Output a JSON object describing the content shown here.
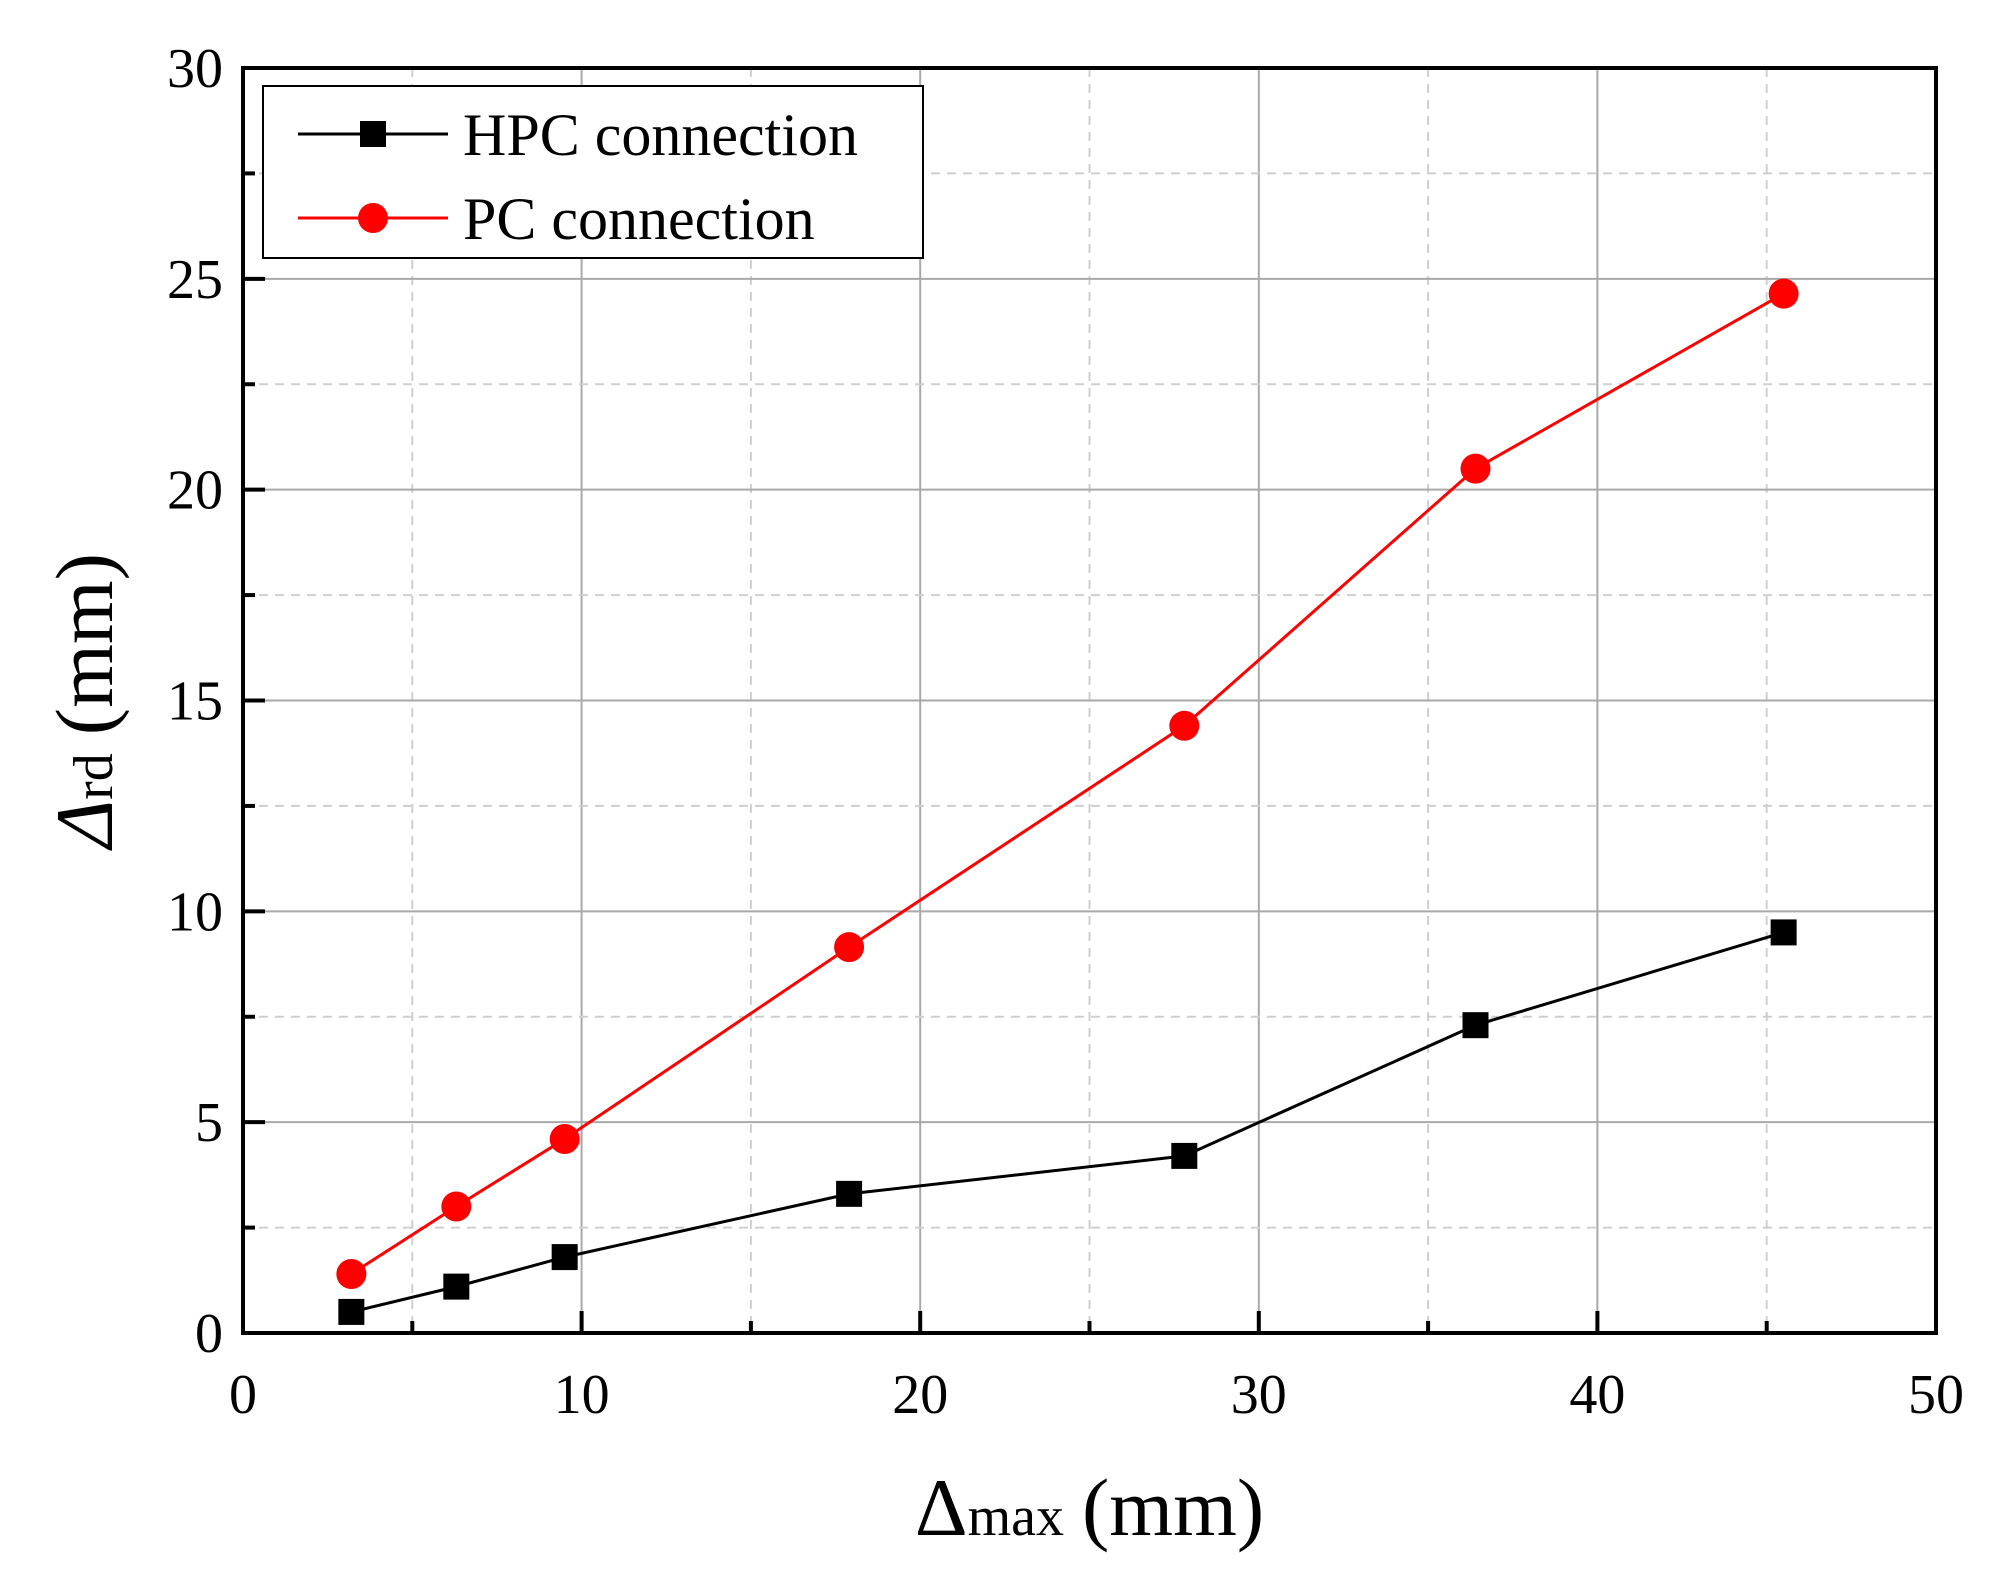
{
  "chart_data": {
    "type": "line",
    "title": "",
    "xlabel": {
      "symbol": "Δ",
      "subscript": "max",
      "unit": "(mm)"
    },
    "ylabel": {
      "symbol": "Δ",
      "subscript": "rd",
      "unit": "(mm)"
    },
    "xlim": [
      0,
      50
    ],
    "ylim": [
      0,
      30
    ],
    "xticks": [
      0,
      10,
      20,
      30,
      40,
      50
    ],
    "yticks": [
      0,
      5,
      10,
      15,
      20,
      25,
      30
    ],
    "xtick_labels": [
      "0",
      "10",
      "20",
      "30",
      "40",
      "50"
    ],
    "ytick_labels": [
      "0",
      "5",
      "10",
      "15",
      "20",
      "25",
      "30"
    ],
    "grid": true,
    "legend_position": "top-left",
    "series": [
      {
        "name": "HPC connection",
        "color": "#000000",
        "marker": "square",
        "x": [
          3.2,
          6.3,
          9.5,
          17.9,
          27.8,
          36.4,
          45.5
        ],
        "y": [
          0.5,
          1.1,
          1.8,
          3.3,
          4.2,
          7.3,
          9.5
        ]
      },
      {
        "name": "PC connection",
        "color": "#ff0000",
        "marker": "circle",
        "x": [
          3.2,
          6.3,
          9.5,
          17.9,
          27.8,
          36.4,
          45.5
        ],
        "y": [
          1.4,
          3.0,
          4.6,
          9.15,
          14.4,
          20.5,
          24.65
        ]
      }
    ]
  }
}
